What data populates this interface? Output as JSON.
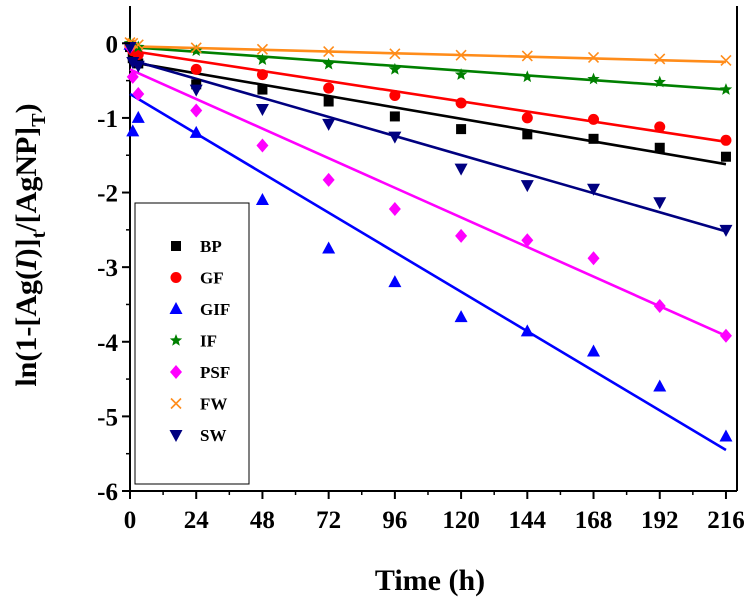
{
  "chart_data": {
    "type": "scatter",
    "title": "",
    "xlabel": "Time (h)",
    "ylabel_parts": {
      "a": "ln(1-[Ag(",
      "b": "I",
      "c": ")]",
      "d": "t",
      "e": "/[AgNP]",
      "f": "T",
      "g": ")"
    },
    "xlim": [
      0,
      220
    ],
    "ylim": [
      -6,
      0.5
    ],
    "xticks": [
      0,
      24,
      48,
      72,
      96,
      120,
      144,
      168,
      192,
      216
    ],
    "yticks": [
      0,
      -1,
      -2,
      -3,
      -4,
      -5,
      -6
    ],
    "legend_position": "left-middle",
    "series": [
      {
        "name": "BP",
        "marker": "square",
        "color": "#000000",
        "x": [
          0,
          1,
          3,
          24,
          48,
          72,
          96,
          120,
          144,
          168,
          192,
          216
        ],
        "y": [
          -0.05,
          -0.2,
          -0.27,
          -0.55,
          -0.62,
          -0.78,
          -0.98,
          -1.15,
          -1.22,
          -1.28,
          -1.4,
          -1.52
        ],
        "fit": [
          -0.25,
          -1.62
        ]
      },
      {
        "name": "GF",
        "marker": "circle",
        "color": "#ff0000",
        "x": [
          0,
          1,
          3,
          24,
          48,
          72,
          96,
          120,
          144,
          168,
          192,
          216
        ],
        "y": [
          -0.03,
          -0.1,
          -0.15,
          -0.35,
          -0.42,
          -0.6,
          -0.7,
          -0.8,
          -1.0,
          -1.02,
          -1.12,
          -1.3
        ],
        "fit": [
          -0.1,
          -1.32
        ]
      },
      {
        "name": "GIF",
        "marker": "triangle-up",
        "color": "#0000ff",
        "x": [
          0,
          1,
          3,
          24,
          48,
          72,
          96,
          120,
          144,
          168,
          192,
          216
        ],
        "y": [
          -0.02,
          -1.18,
          -1.0,
          -1.2,
          -2.1,
          -2.75,
          -3.2,
          -3.67,
          -3.86,
          -4.13,
          -4.6,
          -5.27
        ],
        "fit": [
          -0.68,
          -5.45
        ]
      },
      {
        "name": "IF",
        "marker": "star",
        "color": "#008000",
        "x": [
          0,
          1,
          3,
          24,
          48,
          72,
          96,
          120,
          144,
          168,
          192,
          216
        ],
        "y": [
          0.0,
          -0.02,
          -0.05,
          -0.1,
          -0.22,
          -0.28,
          -0.35,
          -0.42,
          -0.45,
          -0.48,
          -0.52,
          -0.62
        ],
        "fit": [
          -0.05,
          -0.62
        ]
      },
      {
        "name": "PSF",
        "marker": "diamond",
        "color": "#ff00ff",
        "x": [
          0,
          1,
          3,
          24,
          48,
          72,
          96,
          120,
          144,
          168,
          192,
          216
        ],
        "y": [
          -0.05,
          -0.45,
          -0.68,
          -0.9,
          -1.37,
          -1.83,
          -2.22,
          -2.58,
          -2.64,
          -2.88,
          -3.52,
          -3.92
        ],
        "fit": [
          -0.35,
          -3.92
        ]
      },
      {
        "name": "FW",
        "marker": "x",
        "color": "#ff8c1a",
        "x": [
          0,
          1,
          3,
          24,
          48,
          72,
          96,
          120,
          144,
          168,
          192,
          216
        ],
        "y": [
          0.01,
          0.0,
          -0.02,
          -0.06,
          -0.08,
          -0.11,
          -0.14,
          -0.16,
          -0.17,
          -0.19,
          -0.21,
          -0.23
        ],
        "fit": [
          -0.04,
          -0.25
        ]
      },
      {
        "name": "SW",
        "marker": "triangle-down",
        "color": "#000080",
        "x": [
          0,
          1,
          3,
          24,
          48,
          72,
          96,
          120,
          144,
          168,
          192,
          216
        ],
        "y": [
          -0.05,
          -0.25,
          -0.3,
          -0.62,
          -0.88,
          -1.08,
          -1.25,
          -1.68,
          -1.9,
          -1.95,
          -2.13,
          -2.5
        ],
        "fit": [
          -0.22,
          -2.52
        ]
      }
    ]
  }
}
